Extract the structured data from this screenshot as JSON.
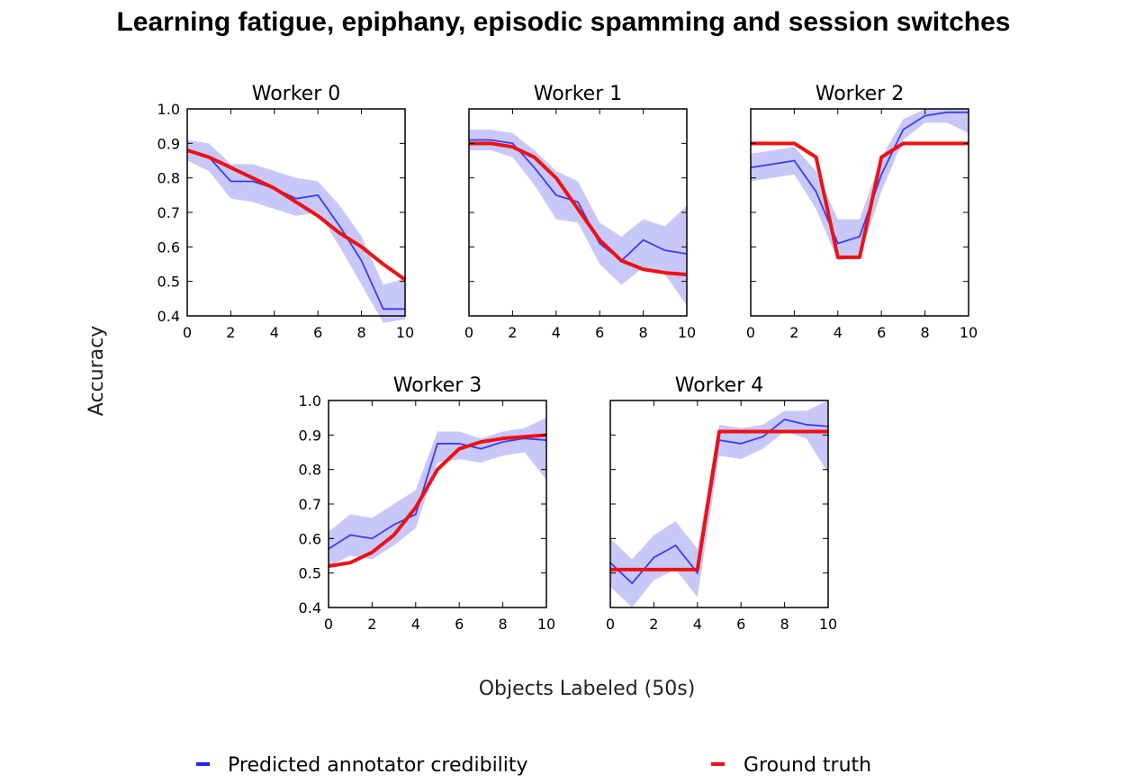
{
  "title": "Learning fatigue, epiphany, episodic spamming and session switches",
  "xlabel": "Objects Labeled (50s)",
  "ylabel": "Accuracy",
  "legend": [
    {
      "label": "Predicted annotator credibility",
      "color": "#2222ff"
    },
    {
      "label": "Ground truth",
      "color": "#ee1111"
    }
  ],
  "colors": {
    "predicted": "#3a3aff",
    "band": "#c8c8f8",
    "truth": "#ee1111"
  },
  "chart_data": [
    {
      "type": "line",
      "title": "Worker 0",
      "x": [
        0,
        1,
        2,
        3,
        4,
        5,
        6,
        7,
        8,
        9,
        10
      ],
      "xlim": [
        0,
        10
      ],
      "ylim": [
        0.4,
        1.0
      ],
      "xticks": [
        "0",
        "2",
        "4",
        "6",
        "8",
        "10"
      ],
      "yticks": [
        "0.4",
        "0.5",
        "0.6",
        "0.7",
        "0.8",
        "0.9",
        "1.0"
      ],
      "series": [
        {
          "role": "predicted",
          "values": [
            0.88,
            0.86,
            0.79,
            0.79,
            0.77,
            0.74,
            0.75,
            0.66,
            0.56,
            0.42,
            0.42
          ],
          "band_lower": [
            0.85,
            0.82,
            0.74,
            0.73,
            0.71,
            0.69,
            0.7,
            0.6,
            0.49,
            0.38,
            0.39
          ],
          "band_upper": [
            0.91,
            0.9,
            0.84,
            0.84,
            0.82,
            0.8,
            0.79,
            0.72,
            0.63,
            0.49,
            0.51
          ]
        },
        {
          "role": "truth",
          "values": [
            0.88,
            0.86,
            0.83,
            0.8,
            0.77,
            0.73,
            0.69,
            0.64,
            0.6,
            0.55,
            0.505
          ]
        }
      ]
    },
    {
      "type": "line",
      "title": "Worker 1",
      "x": [
        0,
        1,
        2,
        3,
        4,
        5,
        6,
        7,
        8,
        9,
        10
      ],
      "xlim": [
        0,
        10
      ],
      "ylim": [
        0.4,
        1.0
      ],
      "xticks": [
        "0",
        "2",
        "4",
        "6",
        "8",
        "10"
      ],
      "yticks": [],
      "series": [
        {
          "role": "predicted",
          "values": [
            0.91,
            0.91,
            0.9,
            0.83,
            0.75,
            0.73,
            0.61,
            0.56,
            0.62,
            0.59,
            0.58
          ],
          "band_lower": [
            0.88,
            0.88,
            0.86,
            0.78,
            0.68,
            0.67,
            0.55,
            0.49,
            0.54,
            0.52,
            0.43
          ],
          "band_upper": [
            0.94,
            0.94,
            0.93,
            0.88,
            0.82,
            0.79,
            0.67,
            0.63,
            0.68,
            0.66,
            0.72
          ]
        },
        {
          "role": "truth",
          "values": [
            0.9,
            0.9,
            0.89,
            0.86,
            0.8,
            0.71,
            0.62,
            0.56,
            0.535,
            0.525,
            0.52
          ]
        }
      ]
    },
    {
      "type": "line",
      "title": "Worker 2",
      "x": [
        0,
        1,
        2,
        3,
        4,
        5,
        6,
        7,
        8,
        9,
        10
      ],
      "xlim": [
        0,
        10
      ],
      "ylim": [
        0.4,
        1.0
      ],
      "xticks": [
        "0",
        "2",
        "4",
        "6",
        "8",
        "10"
      ],
      "yticks": [],
      "series": [
        {
          "role": "predicted",
          "values": [
            0.83,
            0.84,
            0.85,
            0.76,
            0.61,
            0.63,
            0.81,
            0.94,
            0.98,
            0.99,
            0.99
          ],
          "band_lower": [
            0.79,
            0.8,
            0.81,
            0.71,
            0.56,
            0.57,
            0.76,
            0.91,
            0.96,
            0.96,
            0.93
          ],
          "band_upper": [
            0.87,
            0.88,
            0.89,
            0.82,
            0.68,
            0.68,
            0.86,
            0.97,
            1.0,
            1.0,
            1.0
          ]
        },
        {
          "role": "truth",
          "values": [
            0.9,
            0.9,
            0.9,
            0.86,
            0.57,
            0.57,
            0.86,
            0.9,
            0.9,
            0.9,
            0.9
          ]
        }
      ]
    },
    {
      "type": "line",
      "title": "Worker 3",
      "x": [
        0,
        1,
        2,
        3,
        4,
        5,
        6,
        7,
        8,
        9,
        10
      ],
      "xlim": [
        0,
        10
      ],
      "ylim": [
        0.4,
        1.0
      ],
      "xticks": [
        "0",
        "2",
        "4",
        "6",
        "8",
        "10"
      ],
      "yticks": [
        "0.4",
        "0.5",
        "0.6",
        "0.7",
        "0.8",
        "0.9",
        "1.0"
      ],
      "series": [
        {
          "role": "predicted",
          "values": [
            0.57,
            0.61,
            0.6,
            0.64,
            0.67,
            0.875,
            0.875,
            0.86,
            0.88,
            0.89,
            0.885
          ],
          "band_lower": [
            0.52,
            0.55,
            0.54,
            0.58,
            0.63,
            0.82,
            0.83,
            0.82,
            0.84,
            0.85,
            0.77
          ],
          "band_upper": [
            0.62,
            0.67,
            0.66,
            0.7,
            0.74,
            0.91,
            0.91,
            0.89,
            0.91,
            0.92,
            0.95
          ]
        },
        {
          "role": "truth",
          "values": [
            0.52,
            0.53,
            0.56,
            0.61,
            0.69,
            0.8,
            0.86,
            0.88,
            0.89,
            0.895,
            0.9
          ]
        }
      ]
    },
    {
      "type": "line",
      "title": "Worker 4",
      "x": [
        0,
        1,
        2,
        3,
        4,
        5,
        6,
        7,
        8,
        9,
        10
      ],
      "xlim": [
        0,
        10
      ],
      "ylim": [
        0.4,
        1.0
      ],
      "xticks": [
        "0",
        "2",
        "4",
        "6",
        "8",
        "10"
      ],
      "yticks": [],
      "series": [
        {
          "role": "predicted",
          "values": [
            0.53,
            0.47,
            0.545,
            0.58,
            0.5,
            0.885,
            0.875,
            0.895,
            0.945,
            0.93,
            0.925
          ],
          "band_lower": [
            0.46,
            0.4,
            0.48,
            0.51,
            0.43,
            0.84,
            0.83,
            0.86,
            0.91,
            0.89,
            0.79
          ],
          "band_upper": [
            0.6,
            0.54,
            0.61,
            0.65,
            0.57,
            0.93,
            0.92,
            0.93,
            0.97,
            0.97,
            1.0
          ]
        },
        {
          "role": "truth",
          "values": [
            0.51,
            0.51,
            0.51,
            0.51,
            0.51,
            0.91,
            0.91,
            0.91,
            0.91,
            0.91,
            0.91
          ]
        }
      ]
    }
  ]
}
